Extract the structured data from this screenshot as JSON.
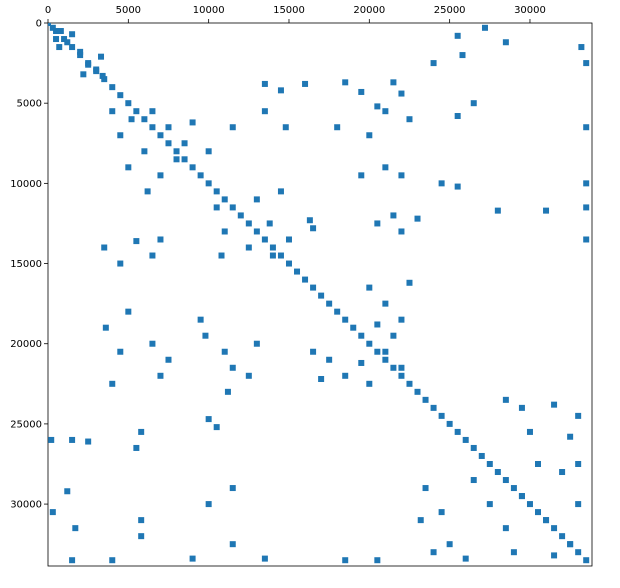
{
  "chart_data": {
    "type": "spy",
    "color": "#1f77b4",
    "y_inverted": true,
    "xlim": [
      0,
      33861
    ],
    "ylim": [
      0,
      33861
    ],
    "xticks": [
      0,
      5000,
      10000,
      15000,
      20000,
      25000,
      30000
    ],
    "yticks": [
      0,
      5000,
      10000,
      15000,
      20000,
      25000,
      30000
    ],
    "x": [
      0,
      500,
      1000,
      1500,
      2000,
      2500,
      3000,
      3500,
      4000,
      4500,
      5000,
      5500,
      6000,
      6500,
      7000,
      7500,
      8000,
      8500,
      9000,
      9500,
      10000,
      10500,
      11000,
      11500,
      12000,
      12500,
      13000,
      13500,
      14000,
      14500,
      15000,
      15500,
      16000,
      16500,
      17000,
      17500,
      18000,
      18500,
      19000,
      19500,
      20000,
      20500,
      21000,
      21500,
      22000,
      22500,
      23000,
      23500,
      24000,
      24500,
      25000,
      25500,
      26000,
      26500,
      27000,
      27500,
      28000,
      28500,
      29000,
      29500,
      30000,
      30500,
      31000,
      31500,
      32000,
      32500,
      33000,
      33500,
      300,
      800,
      500,
      1200,
      1500,
      700,
      2000,
      2500,
      3000,
      3400,
      2200,
      3300,
      4000,
      5200,
      6500,
      7500,
      8500,
      6000,
      5000,
      7000,
      8000,
      9000,
      4500,
      10000,
      11500,
      6200,
      10500,
      11000,
      10800,
      12500,
      13800,
      14500,
      14000,
      15000,
      13000,
      16500,
      16300,
      13500,
      14500,
      18500,
      19500,
      21500,
      22000,
      16000,
      13500,
      14800,
      18000,
      20500,
      22500,
      20000,
      21000,
      25500,
      26500,
      33500,
      19500,
      21000,
      22000,
      24500,
      25500,
      33500,
      28000,
      31000,
      33500,
      20500,
      21500,
      22000,
      23000,
      3500,
      4500,
      5500,
      6500,
      7000,
      33500,
      20000,
      21000,
      22000,
      21500,
      22500,
      20500,
      3600,
      4500,
      5000,
      6500,
      7000,
      9500,
      9800,
      4000,
      7500,
      11500,
      12500,
      11000,
      13000,
      11200,
      16500,
      17500,
      18500,
      19500,
      20000,
      17000,
      21000,
      22000,
      28500,
      29500,
      30000,
      31500,
      33000,
      32500,
      23500,
      24500,
      23200,
      25000,
      26500,
      27500,
      28500,
      29500,
      30500,
      31000,
      32000,
      33000,
      32500,
      24000,
      26000,
      29000,
      31500,
      33000,
      200,
      1500,
      2500,
      1200,
      5800,
      5500,
      300,
      1700,
      5800,
      5800,
      10000,
      11500,
      4000,
      9000,
      11500,
      1500,
      13500,
      18500,
      20500,
      10500,
      10000,
      25500,
      27200,
      28500,
      33200,
      33500,
      25800,
      24000
    ],
    "values": [
      0,
      500,
      1000,
      1500,
      2000,
      2500,
      3000,
      3500,
      4000,
      4500,
      5000,
      5500,
      6000,
      6500,
      7000,
      7500,
      8000,
      8500,
      9000,
      9500,
      10000,
      10500,
      11000,
      11500,
      12000,
      12500,
      13000,
      13500,
      14000,
      14500,
      15000,
      15500,
      16000,
      16500,
      17000,
      17500,
      18000,
      18500,
      19000,
      19500,
      20000,
      20500,
      21000,
      21500,
      22000,
      22500,
      23000,
      23500,
      24000,
      24500,
      25000,
      25500,
      26000,
      26500,
      27000,
      27500,
      28000,
      28500,
      29000,
      29500,
      30000,
      30500,
      31000,
      31500,
      32000,
      32500,
      33000,
      33500,
      300,
      500,
      1000,
      1200,
      700,
      1500,
      1800,
      2600,
      2900,
      3300,
      3200,
      2100,
      5500,
      6000,
      5500,
      6500,
      7500,
      8000,
      9000,
      9500,
      8500,
      6200,
      7000,
      8000,
      6500,
      10500,
      11500,
      13000,
      14500,
      14000,
      12500,
      10500,
      14500,
      13500,
      11000,
      12800,
      12300,
      3800,
      4200,
      3700,
      4300,
      3700,
      4400,
      3800,
      5500,
      6500,
      6500,
      5200,
      6000,
      7000,
      5500,
      5800,
      5000,
      6500,
      9500,
      9000,
      9500,
      10000,
      10200,
      10000,
      11700,
      11700,
      11500,
      12500,
      12000,
      13000,
      12200,
      14000,
      15000,
      13600,
      14500,
      13500,
      13500,
      16500,
      17500,
      18500,
      19500,
      16200,
      18800,
      19000,
      20500,
      18000,
      20000,
      22000,
      18500,
      19500,
      22500,
      21000,
      21500,
      22000,
      20500,
      20000,
      23000,
      20500,
      21000,
      22000,
      21200,
      22500,
      22200,
      20500,
      21500,
      23500,
      24000,
      25500,
      23800,
      24500,
      25800,
      29000,
      30500,
      31000,
      32500,
      28500,
      30000,
      31500,
      29500,
      27500,
      31000,
      28000,
      30000,
      32500,
      33000,
      33400,
      33000,
      33200,
      27500,
      26000,
      26000,
      26100,
      29200,
      25500,
      26500,
      30500,
      31500,
      31000,
      32000,
      30000,
      29000,
      33500,
      33400,
      32500,
      33500,
      33400,
      33500,
      33500,
      25200,
      24700,
      800,
      300,
      1200,
      1500,
      2500,
      2000,
      2500
    ]
  }
}
